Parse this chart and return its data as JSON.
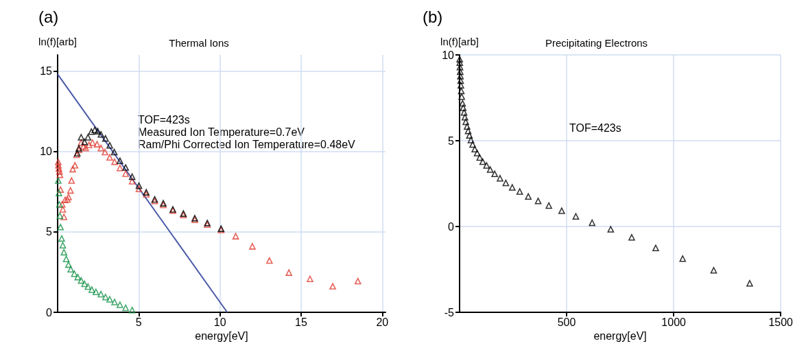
{
  "chart_data": [
    {
      "type": "scatter",
      "title": "Thermal Ions",
      "xlabel": "energy[eV]",
      "ylabel": "ln(f)[arb]",
      "annotations": [
        "(a)",
        "TOF=423s",
        "Measured Ion Temperature=0.7eV",
        "Ram/Phi Corrected Ion Temperature=0.48eV"
      ],
      "xlim": [
        0,
        20.2
      ],
      "xticks": [
        5,
        10,
        15,
        20
      ],
      "ylim": [
        0,
        16
      ],
      "yticks": [
        0,
        5,
        10,
        15
      ],
      "grid": true,
      "marker": "triangle",
      "series": [
        {
          "color": "#e03c31",
          "x": [
            0.04,
            0.05,
            0.08,
            0.11,
            0.14,
            0.18,
            0.28,
            0.32,
            0.39,
            0.46,
            0.6,
            0.67,
            0.79,
            0.86,
            0.93,
            1.07,
            1.17,
            1.31,
            1.45,
            1.59,
            1.73,
            1.94,
            2.15,
            2.43,
            2.67,
            2.92,
            3.21,
            3.51,
            3.84,
            4.19,
            4.59,
            5.01,
            5.46,
            5.98,
            6.51,
            7.1,
            7.75,
            8.45,
            9.22,
            10.07,
            10.97,
            12.0,
            13.05,
            14.25,
            15.55,
            16.95,
            18.5
          ],
          "values": [
            9.35,
            9.14,
            8.94,
            8.76,
            8.55,
            7.63,
            6.71,
            6.4,
            5.93,
            6.99,
            7.02,
            7.17,
            7.58,
            8.19,
            8.9,
            9.14,
            9.79,
            10.1,
            10.55,
            10.31,
            10.21,
            10.41,
            10.55,
            10.45,
            10.21,
            9.96,
            9.63,
            9.36,
            8.97,
            8.62,
            8.15,
            7.67,
            7.34,
            6.92,
            6.68,
            6.33,
            6.05,
            5.75,
            5.45,
            5.12,
            4.73,
            4.1,
            3.22,
            2.47,
            2.08,
            1.62,
            1.94
          ]
        },
        {
          "color": "#000000",
          "x": [
            1.21,
            1.31,
            1.45,
            1.66,
            1.87,
            2.08,
            2.29,
            2.47,
            2.67,
            2.95,
            3.21,
            3.49,
            3.84,
            4.19,
            4.59,
            5.01,
            5.46,
            5.98,
            6.51,
            7.1,
            7.75,
            8.45,
            9.22,
            10.07
          ],
          "values": [
            9.89,
            10.2,
            10.88,
            10.59,
            10.88,
            11.23,
            11.34,
            11.26,
            11.06,
            10.81,
            10.38,
            9.96,
            9.42,
            9.0,
            8.43,
            7.87,
            7.46,
            7.02,
            6.78,
            6.4,
            6.14,
            5.85,
            5.55,
            5.2
          ]
        },
        {
          "color": "#17924a",
          "x": [
            0.04,
            0.08,
            0.11,
            0.14,
            0.18,
            0.25,
            0.32,
            0.39,
            0.53,
            0.67,
            0.81,
            1.03,
            1.24,
            1.45,
            1.66,
            1.87,
            2.11,
            2.36,
            2.67,
            2.95,
            3.21,
            3.51,
            3.84,
            4.19,
            4.59
          ],
          "values": [
            8.19,
            7.42,
            6.71,
            6.0,
            5.3,
            4.59,
            4.17,
            3.74,
            3.32,
            2.97,
            2.68,
            2.4,
            2.19,
            1.98,
            1.77,
            1.6,
            1.41,
            1.27,
            1.13,
            0.95,
            0.81,
            0.64,
            0.47,
            0.28,
            0.14
          ]
        },
        {
          "type": "line",
          "marker": "none",
          "color": "#4a5aa8",
          "x": [
            0,
            10.45
          ],
          "values": [
            14.8,
            0
          ]
        }
      ]
    },
    {
      "type": "scatter",
      "title": "Precipitating Electrons",
      "xlabel": "energy[eV]",
      "ylabel": "ln(f)[arb]",
      "annotations": [
        "(b)",
        "TOF=423s"
      ],
      "xlim": [
        0,
        1500
      ],
      "xticks": [
        500,
        1000,
        1500
      ],
      "ylim": [
        -5,
        10
      ],
      "yticks": [
        -5,
        0,
        5,
        10
      ],
      "grid": true,
      "marker": "triangle",
      "series": [
        {
          "color": "#000000",
          "x": [
            0.5,
            1,
            2,
            3,
            4,
            5,
            6,
            8,
            10,
            14,
            17,
            21,
            25,
            29,
            35,
            40,
            46,
            53,
            61,
            71,
            82,
            94,
            108,
            126,
            143,
            164,
            189,
            216,
            246,
            281,
            321,
            367,
            417,
            477,
            543,
            619,
            706,
            804,
            916,
            1042,
            1187,
            1355
          ],
          "values": [
            9.75,
            9.55,
            9.29,
            9.02,
            8.76,
            8.5,
            8.23,
            7.9,
            7.57,
            7.18,
            6.92,
            6.65,
            6.37,
            6.1,
            5.83,
            5.57,
            5.31,
            5.04,
            4.78,
            4.51,
            4.28,
            4.02,
            3.78,
            3.56,
            3.32,
            3.07,
            2.81,
            2.54,
            2.28,
            2.04,
            1.75,
            1.49,
            1.22,
            0.92,
            0.59,
            0.22,
            -0.16,
            -0.63,
            -1.25,
            -1.87,
            -2.55,
            -3.31
          ]
        }
      ]
    }
  ]
}
